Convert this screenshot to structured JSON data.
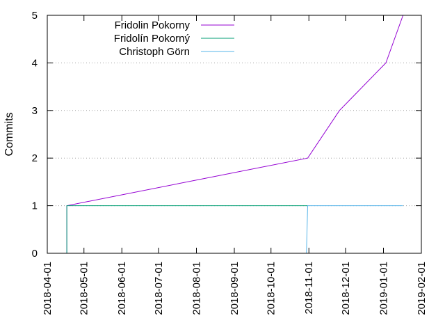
{
  "chart_data": {
    "type": "line",
    "title": "",
    "xlabel": "",
    "ylabel": "Commits",
    "xlim": [
      "2018-04-01",
      "2019-02-01"
    ],
    "ylim": [
      0,
      5
    ],
    "x_ticks": [
      "2018-04-01",
      "2018-05-01",
      "2018-06-01",
      "2018-07-01",
      "2018-08-01",
      "2018-09-01",
      "2018-10-01",
      "2018-11-01",
      "2018-12-01",
      "2019-01-01",
      "2019-02-01"
    ],
    "y_ticks": [
      0,
      1,
      2,
      3,
      4,
      5
    ],
    "grid": "horizontal dotted",
    "legend_position": "top-left",
    "series": [
      {
        "name": "Fridolin Pokorny",
        "color": "#9400d3",
        "x": [
          "2018-04-17",
          "2018-04-17",
          "2018-10-31",
          "2018-11-26",
          "2019-01-03",
          "2019-01-17"
        ],
        "y": [
          0,
          1,
          2,
          3,
          4,
          5
        ]
      },
      {
        "name": "Fridolín Pokorný",
        "color": "#009e73",
        "x": [
          "2018-04-17",
          "2018-04-17",
          "2018-10-31"
        ],
        "y": [
          0,
          1,
          1
        ]
      },
      {
        "name": "Christoph Görn",
        "color": "#56b4e9",
        "x": [
          "2018-10-30",
          "2018-10-31",
          "2019-01-17"
        ],
        "y": [
          0,
          1,
          1
        ]
      }
    ]
  }
}
